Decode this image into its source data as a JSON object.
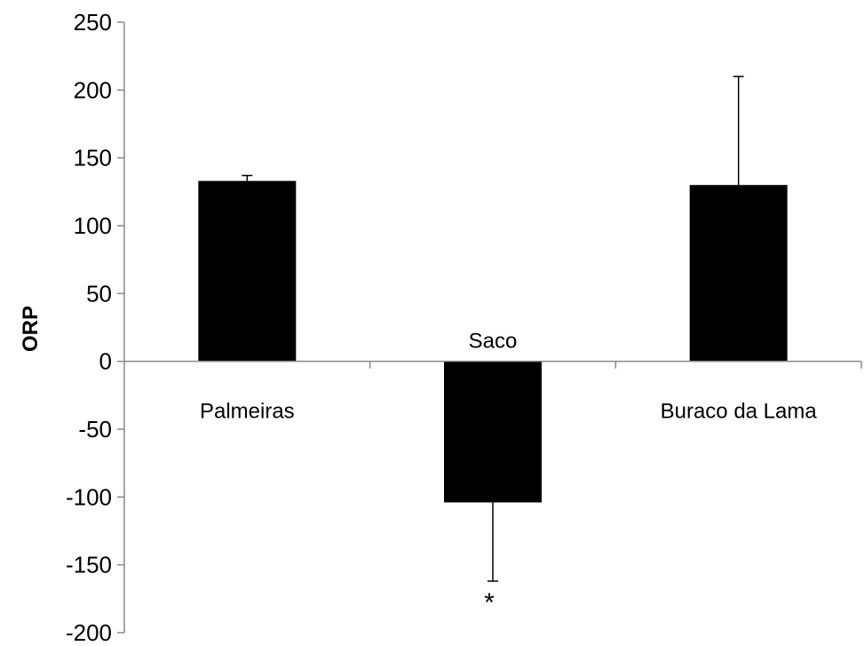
{
  "chart_data": {
    "type": "bar",
    "title": "",
    "xlabel": "",
    "ylabel": "ORP",
    "ylim": [
      -200,
      250
    ],
    "yticks": [
      250,
      200,
      150,
      100,
      50,
      0,
      -50,
      -100,
      -150,
      -200
    ],
    "grid": false,
    "categories": [
      "Palmeiras",
      "Saco",
      "Buraco da Lama"
    ],
    "values": [
      133,
      -104,
      130
    ],
    "error": [
      4,
      58,
      80
    ],
    "bar_color": "#000000",
    "annotations": [
      {
        "category": "Saco",
        "text": "*"
      }
    ]
  }
}
